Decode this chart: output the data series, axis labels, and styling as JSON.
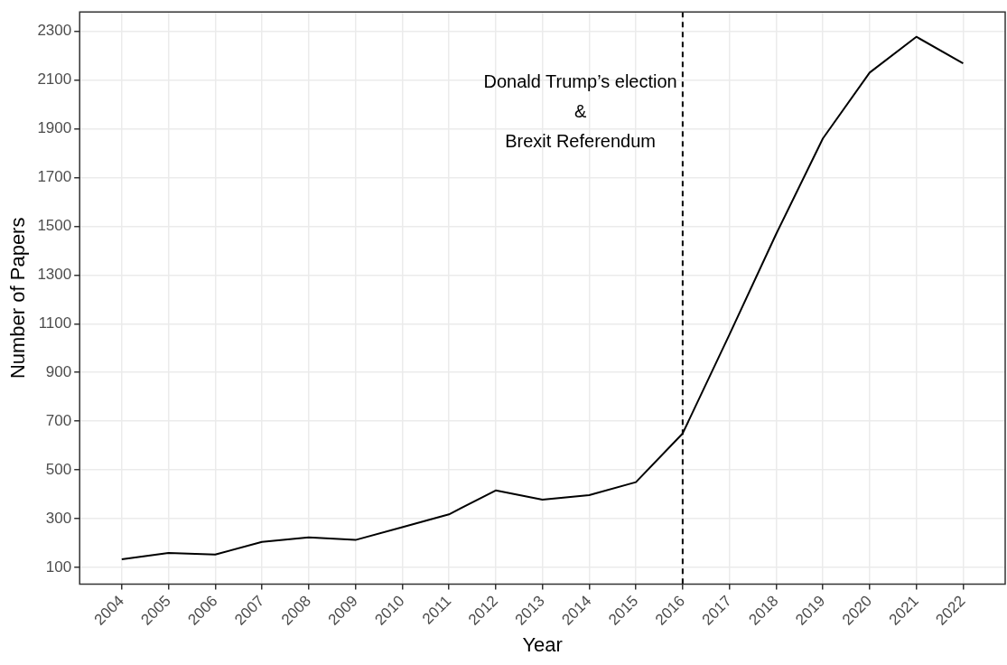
{
  "chart_data": {
    "type": "line",
    "xlabel": "Year",
    "ylabel": "Number of Papers",
    "x": [
      2004,
      2005,
      2006,
      2007,
      2008,
      2009,
      2010,
      2011,
      2012,
      2013,
      2014,
      2015,
      2016,
      2017,
      2018,
      2019,
      2020,
      2021,
      2022
    ],
    "series": [
      {
        "color": "#000000",
        "values": [
          134,
          160,
          153,
          205,
          224,
          213,
          265,
          318,
          416,
          378,
          397,
          450,
          650,
          1055,
          1468,
          1860,
          2130,
          2277,
          2168
        ]
      }
    ],
    "xlim": [
      2003.1,
      2022.9
    ],
    "xticks": [
      2004,
      2005,
      2006,
      2007,
      2008,
      2009,
      2010,
      2011,
      2012,
      2013,
      2014,
      2015,
      2016,
      2017,
      2018,
      2019,
      2020,
      2021,
      2022
    ],
    "ylim": [
      32,
      2379
    ],
    "yticks": [
      100,
      300,
      500,
      700,
      900,
      1100,
      1300,
      1500,
      1700,
      1900,
      2100,
      2300
    ],
    "ref_lines": [
      {
        "axis": "x",
        "value": 2016,
        "label": "Donald Trump’s election\n&\nBrexit Referendum",
        "color": "#000000",
        "line_style": "dashed"
      }
    ],
    "grid": true,
    "marker": "none",
    "line_style": "solid",
    "legend": false
  }
}
